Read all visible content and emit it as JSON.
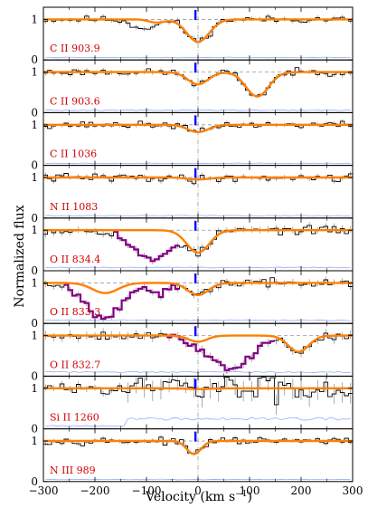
{
  "chart_data": {
    "type": "line",
    "title": "",
    "xlabel_prefix": "Velocity (km s",
    "xlabel_exp": "−1",
    "xlabel_suffix": ")",
    "ylabel": "Normalized flux",
    "xlim": [
      -300,
      300
    ],
    "ylim": [
      0,
      1.3
    ],
    "x_ticks": [
      -300,
      -200,
      -100,
      0,
      100,
      200,
      300
    ],
    "x_tick_labels": [
      "−300",
      "−200",
      "−100",
      "0",
      "100",
      "200",
      "300"
    ],
    "y_tick_labels": [
      "0",
      "1"
    ],
    "marker_velocity": -5,
    "zero_velocity": 0,
    "colors": {
      "data": "#000000",
      "model": "#ff8000",
      "blend": "#800080",
      "error": "#8aa0ff",
      "marker": "#0000ff",
      "label": "#d40000"
    },
    "panels": [
      {
        "label": "C II 903.9",
        "seed": 11,
        "noise": 0.05,
        "err": 0.06,
        "components": [
          {
            "v": 0,
            "depth": 0.55,
            "sigma": 22
          },
          {
            "v": -80,
            "depth": 0.08,
            "sigma": 15
          }
        ],
        "data_dips": [
          {
            "v": -110,
            "depth": 0.2,
            "sigma": 20
          }
        ],
        "blend": []
      },
      {
        "label": "C II 903.6",
        "seed": 23,
        "noise": 0.05,
        "err": 0.06,
        "components": [
          {
            "v": 0,
            "depth": 0.3,
            "sigma": 20
          },
          {
            "v": 115,
            "depth": 0.6,
            "sigma": 22
          }
        ],
        "data_dips": [],
        "blend": []
      },
      {
        "label": "C II 1036",
        "seed": 37,
        "noise": 0.05,
        "err": 0.05,
        "components": [
          {
            "v": 0,
            "depth": 0.18,
            "sigma": 20
          }
        ],
        "data_dips": [],
        "blend": []
      },
      {
        "label": "N II 1083",
        "seed": 41,
        "noise": 0.06,
        "err": 0.06,
        "components": [
          {
            "v": 0,
            "depth": 0.05,
            "sigma": 20
          }
        ],
        "data_dips": [],
        "blend": []
      },
      {
        "label": "O II 834.4",
        "seed": 53,
        "noise": 0.06,
        "err": 0.08,
        "components": [
          {
            "v": 0,
            "depth": 0.55,
            "sigma": 22
          }
        ],
        "data_dips": [],
        "blend": [
          -160,
          -40
        ],
        "blend_dips": [
          {
            "v": -90,
            "depth": 0.75,
            "sigma": 35
          }
        ]
      },
      {
        "label": "O II 833.3",
        "seed": 67,
        "noise": 0.06,
        "err": 0.08,
        "components": [
          {
            "v": 0,
            "depth": 0.3,
            "sigma": 20
          },
          {
            "v": -180,
            "depth": 0.25,
            "sigma": 25
          }
        ],
        "data_dips": [],
        "blend": [
          -260,
          -40
        ],
        "blend_dips": [
          {
            "v": -185,
            "depth": 0.75,
            "sigma": 35
          },
          {
            "v": -75,
            "depth": 0.3,
            "sigma": 20
          }
        ]
      },
      {
        "label": "O II 832.7",
        "seed": 79,
        "noise": 0.06,
        "err": 0.1,
        "components": [
          {
            "v": 0,
            "depth": 0.15,
            "sigma": 18
          },
          {
            "v": 195,
            "depth": 0.4,
            "sigma": 20
          }
        ],
        "data_dips": [],
        "blend": [
          -60,
          150
        ],
        "blend_dips": [
          {
            "v": 65,
            "depth": 0.8,
            "sigma": 40
          }
        ]
      },
      {
        "label": "Si II 1260",
        "seed": 83,
        "noise": 0.22,
        "err": 0.25,
        "components": [
          {
            "v": 0,
            "depth": 0.02,
            "sigma": 20
          }
        ],
        "data_dips": [],
        "blend": [],
        "low_snr_below": -140
      },
      {
        "label": "N III 989",
        "seed": 97,
        "noise": 0.05,
        "err": 0.05,
        "components": [
          {
            "v": -8,
            "depth": 0.32,
            "sigma": 14
          }
        ],
        "data_dips": [],
        "blend": []
      }
    ]
  }
}
